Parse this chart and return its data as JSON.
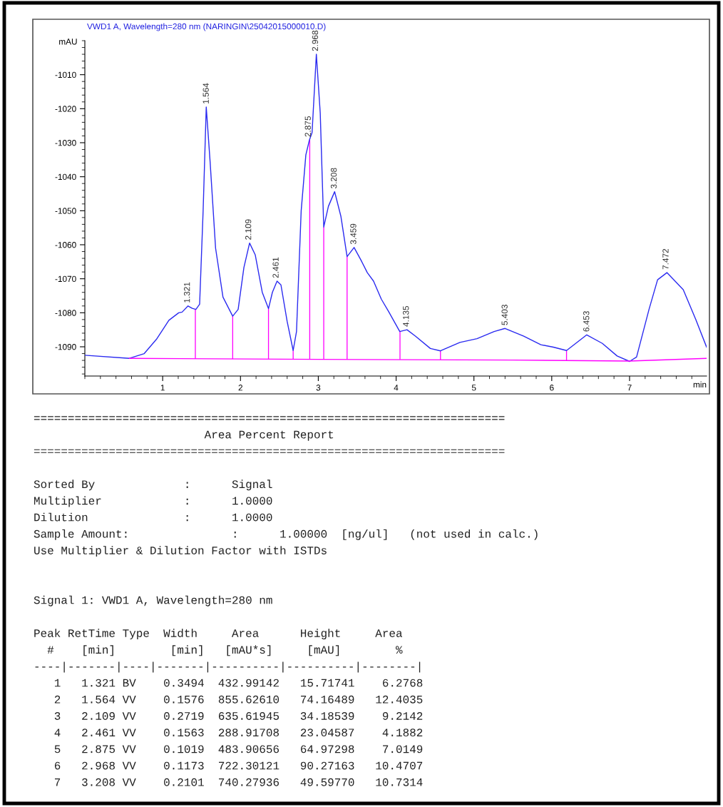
{
  "chart_data": {
    "type": "line",
    "title": "VWD1 A, Wavelength=280 nm (NARINGIN\\25042015000010.D)",
    "xlabel": "min",
    "ylabel": "mAU",
    "xlim": [
      0,
      7.99
    ],
    "ylim": [
      -1098.6,
      -1000
    ],
    "xticks": [
      1,
      2,
      3,
      4,
      5,
      6,
      7
    ],
    "yticks": [
      -1010,
      -1020,
      -1030,
      -1040,
      -1050,
      -1060,
      -1070,
      -1080,
      -1090
    ],
    "grid": false,
    "legend": false,
    "marker": "none",
    "line_style": "solid",
    "series": [
      {
        "color": "#2a2af0",
        "x": [
          0,
          0.573,
          0.763,
          0.92,
          1.08,
          1.206,
          1.25,
          1.326,
          1.38,
          1.427,
          1.475,
          1.52,
          1.56,
          1.61,
          1.68,
          1.775,
          1.9,
          1.97,
          2.044,
          2.117,
          2.19,
          2.28,
          2.36,
          2.41,
          2.47,
          2.52,
          2.6,
          2.677,
          2.72,
          2.78,
          2.84,
          2.886,
          2.92,
          2.975,
          3.025,
          3.07,
          3.13,
          3.21,
          3.29,
          3.37,
          3.46,
          3.55,
          3.63,
          3.71,
          3.81,
          3.905,
          4.047,
          4.14,
          4.25,
          4.44,
          4.57,
          4.82,
          5.04,
          5.26,
          5.4,
          5.64,
          5.86,
          6.02,
          6.19,
          6.45,
          6.65,
          6.84,
          7.0,
          7.09,
          7.25,
          7.36,
          7.48,
          7.69,
          7.85,
          7.99
        ],
        "values": [
          -1092.5,
          -1093.4,
          -1092,
          -1087.8,
          -1082.2,
          -1080,
          -1079.8,
          -1078,
          -1078.7,
          -1079,
          -1077.5,
          -1050,
          -1019.5,
          -1035.7,
          -1061,
          -1075.4,
          -1081,
          -1079,
          -1066.7,
          -1059.5,
          -1063,
          -1074,
          -1078.8,
          -1074,
          -1070.7,
          -1071.8,
          -1082.6,
          -1091.1,
          -1085.5,
          -1050,
          -1033.6,
          -1029.2,
          -1027,
          -1004,
          -1021.3,
          -1054.8,
          -1048.7,
          -1044.4,
          -1051.6,
          -1063.5,
          -1060.8,
          -1064.6,
          -1068.2,
          -1070.7,
          -1076,
          -1079.7,
          -1085.5,
          -1085,
          -1086.9,
          -1090.5,
          -1091.2,
          -1088.7,
          -1087.6,
          -1085.5,
          -1084.6,
          -1086.9,
          -1089.4,
          -1090.1,
          -1091.1,
          -1086.5,
          -1089,
          -1092.7,
          -1094.3,
          -1093,
          -1079,
          -1070.3,
          -1068.2,
          -1073.2,
          -1081.9,
          -1090.1
        ]
      },
      {
        "type": "line",
        "color": "#ff00ff",
        "x": [
          0.573,
          3.0,
          5.5,
          7.0,
          7.99
        ],
        "values": [
          -1093.4,
          -1093.7,
          -1093.9,
          -1094.2,
          -1093.4
        ]
      },
      {
        "type": "bar",
        "color": "#ff00ff",
        "x": [
          1.42,
          1.9,
          2.36,
          2.677,
          2.89,
          3.07,
          3.37,
          4.05,
          4.57,
          6.19
        ],
        "base": [
          -1093.5,
          -1093.6,
          -1093.6,
          -1093.7,
          -1093.7,
          -1093.7,
          -1093.7,
          -1093.7,
          -1093.8,
          -1094.0
        ],
        "values": [
          14.5,
          12.6,
          14.8,
          2.6,
          64.5,
          38.9,
          30.2,
          8.2,
          2.6,
          2.9
        ]
      }
    ],
    "annotations": [
      {
        "text": "1.321",
        "x": 1.321,
        "y": -1078
      },
      {
        "text": "1.564",
        "x": 1.564,
        "y": -1019.5
      },
      {
        "text": "2.109",
        "x": 2.109,
        "y": -1059.5
      },
      {
        "text": "2.461",
        "x": 2.461,
        "y": -1070.7
      },
      {
        "text": "2.875",
        "x": 2.875,
        "y": -1029.2
      },
      {
        "text": "2.968",
        "x": 2.968,
        "y": -1004
      },
      {
        "text": "3.208",
        "x": 3.208,
        "y": -1044.4
      },
      {
        "text": "3.459",
        "x": 3.459,
        "y": -1060.8
      },
      {
        "text": "4.135",
        "x": 4.135,
        "y": -1085
      },
      {
        "text": "5.403",
        "x": 5.403,
        "y": -1084.6
      },
      {
        "text": "6.453",
        "x": 6.453,
        "y": -1086.5
      },
      {
        "text": "7.472",
        "x": 7.472,
        "y": -1068.2
      },
      "=====================================================================",
      "                         Area Percent Report",
      "=====================================================================",
      "Sorted By             :      Signal",
      "Multiplier            :      1.0000",
      "Dilution              :      1.0000",
      "Sample Amount:               :      1.00000  [ng/ul]   (not used in calc.)",
      "Use Multiplier & Dilution Factor with ISTDs",
      "Signal 1: VWD1 A, Wavelength=280 nm",
      "Peak RetTime Type  Width     Area      Height     Area",
      "  #    [min]        [min]   [mAU*s]     [mAU]        %",
      "----|-------|----|-------|----------|----------|--------|",
      "   1   1.321 BV    0.3494  432.99142   15.71741    6.2768",
      "   2   1.564 VV    0.1576  855.62610   74.16489   12.4035",
      "   3   2.109 VV    0.2719  635.61945   34.18539    9.2142",
      "   4   2.461 VV    0.1563  288.91708   23.04587    4.1882",
      "   5   2.875 VV    0.1019  483.90656   64.97298    7.0149",
      "   6   2.968 VV    0.1173  722.30121   90.27163   10.4707",
      "   7   3.208 VV    0.2101  740.27936   49.59770   10.7314"
    ]
  }
}
